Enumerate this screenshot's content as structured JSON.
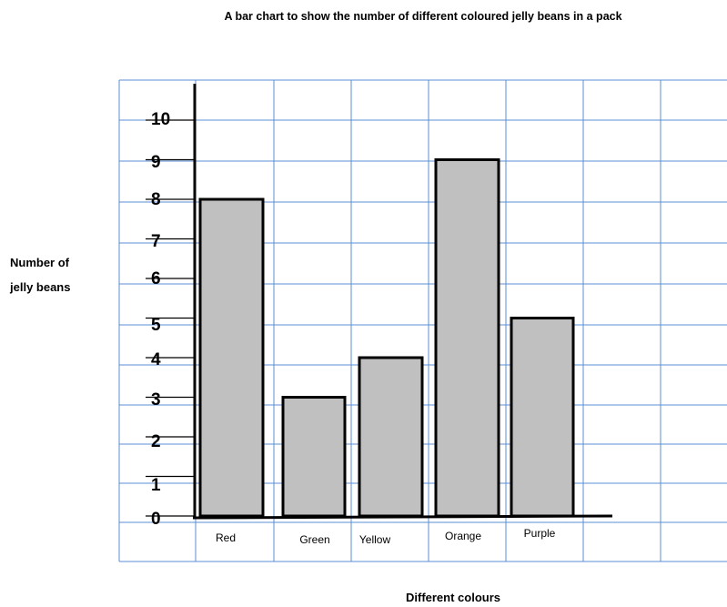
{
  "chart_data": {
    "type": "bar",
    "title": "A bar chart to show the number of different coloured jelly beans in a pack",
    "xlabel": "Different colours",
    "ylabel": [
      "Number of",
      "jelly beans"
    ],
    "categories": [
      "Red",
      "Green",
      "Yellow",
      "Orange",
      "Purple"
    ],
    "values": [
      8,
      3,
      4,
      9,
      5
    ],
    "yticks": [
      0,
      1,
      2,
      3,
      4,
      5,
      6,
      7,
      8,
      9,
      10
    ],
    "ylim": [
      0,
      10
    ],
    "grid": true,
    "bar_color": "#c0c0c0",
    "grid_color": "#5b8fd6"
  }
}
